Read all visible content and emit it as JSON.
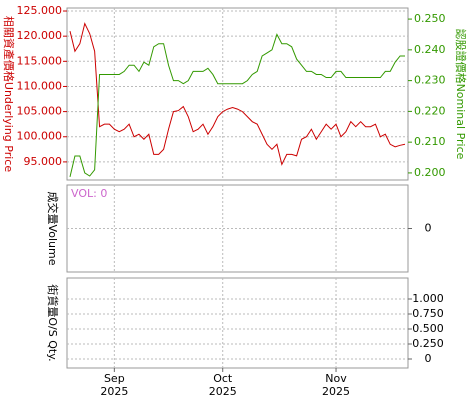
{
  "chart_data": [
    {
      "type": "line",
      "y_label": "相關資產價格Underlying Price",
      "y2_label": "認股證價格Nominal Price",
      "categories": [
        null,
        null,
        null,
        null,
        null,
        null,
        null,
        null,
        null,
        "Sep\n2025",
        null,
        null,
        null,
        null,
        null,
        null,
        null,
        null,
        null,
        null,
        null,
        null,
        null,
        null,
        null,
        null,
        null,
        null,
        null,
        null,
        null,
        "Oct\n2025",
        null,
        null,
        null,
        null,
        null,
        null,
        null,
        null,
        null,
        null,
        null,
        null,
        null,
        null,
        null,
        null,
        null,
        null,
        null,
        null,
        null,
        null,
        "Nov\n2025",
        null,
        null,
        null,
        null,
        null,
        null,
        null,
        null,
        null,
        null,
        null,
        null,
        null,
        null
      ],
      "ylim": [
        91.4,
        125.6
      ],
      "yticks": [
        {
          "value": 95,
          "label": "95.000"
        },
        {
          "value": 100,
          "label": "100.000"
        },
        {
          "value": 105,
          "label": "105.000"
        },
        {
          "value": 110,
          "label": "110.000"
        },
        {
          "value": 115,
          "label": "115.000"
        },
        {
          "value": 120,
          "label": "120.000"
        },
        {
          "value": 125,
          "label": "125.000"
        }
      ],
      "y2lim": [
        0.1977,
        0.2536
      ],
      "y2ticks": [
        {
          "value": 0.2,
          "label": "0.200"
        },
        {
          "value": 0.21,
          "label": "0.210"
        },
        {
          "value": 0.22,
          "label": "0.220"
        },
        {
          "value": 0.23,
          "label": "0.230"
        },
        {
          "value": 0.24,
          "label": "0.240"
        },
        {
          "value": 0.25,
          "label": "0.250"
        }
      ],
      "grid": true,
      "series": [
        {
          "color": "#cc0000",
          "values": [
            121,
            117,
            118.5,
            122.5,
            120.5,
            117,
            102,
            102.5,
            102.5,
            101.5,
            101,
            101.5,
            102.5,
            100,
            100.5,
            99.5,
            100.5,
            96.5,
            96.5,
            97.5,
            101.5,
            105,
            105.2,
            106,
            104,
            101,
            101.5,
            102.5,
            100.5,
            102,
            104,
            105,
            105.5,
            105.8,
            105.5,
            105,
            104,
            103,
            102.5,
            100.5,
            98.5,
            97.5,
            98.5,
            94.5,
            96.5,
            96.5,
            96.2,
            99.5,
            100,
            101.5,
            99.5,
            101,
            102.5,
            101.5,
            102.5,
            100,
            101,
            103,
            102,
            103,
            102,
            102,
            102.5,
            100,
            100.5,
            98.5,
            98,
            98.3,
            98.5
          ]
        },
        {
          "color": "#339900",
          "axis": "y2",
          "values": [
            0.1987,
            0.2055,
            0.2055,
            0.2,
            0.199,
            0.201,
            0.232,
            0.232,
            0.232,
            0.232,
            0.232,
            0.233,
            0.235,
            0.235,
            0.233,
            0.236,
            0.235,
            0.241,
            0.242,
            0.242,
            0.235,
            0.23,
            0.23,
            0.229,
            0.23,
            0.233,
            0.233,
            0.233,
            0.234,
            0.232,
            0.229,
            0.229,
            0.229,
            0.229,
            0.229,
            0.229,
            0.23,
            0.232,
            0.233,
            0.238,
            0.239,
            0.24,
            0.245,
            0.242,
            0.242,
            0.241,
            0.237,
            0.235,
            0.233,
            0.233,
            0.232,
            0.232,
            0.231,
            0.231,
            0.233,
            0.233,
            0.231,
            0.231,
            0.231,
            0.231,
            0.231,
            0.231,
            0.231,
            0.231,
            0.233,
            0.233,
            0.236,
            0.238,
            0.238
          ]
        }
      ]
    },
    {
      "type": "bar",
      "y_label": "成交量Volume",
      "annotation": "VOL: 0",
      "ylim": [
        -1,
        1
      ],
      "yticks": [
        0
      ],
      "grid": true
    },
    {
      "type": "line",
      "y_label": "街貨量O/S Qty.",
      "ylim": [
        -0.15,
        1.35
      ],
      "yticks": [
        0,
        {
          "value": 0.25,
          "label": "0.250"
        },
        {
          "value": 0.5,
          "label": "0.500"
        },
        {
          "value": 0.75,
          "label": "0.750"
        },
        {
          "value": 1,
          "label": "1.000"
        }
      ],
      "grid": true
    }
  ]
}
